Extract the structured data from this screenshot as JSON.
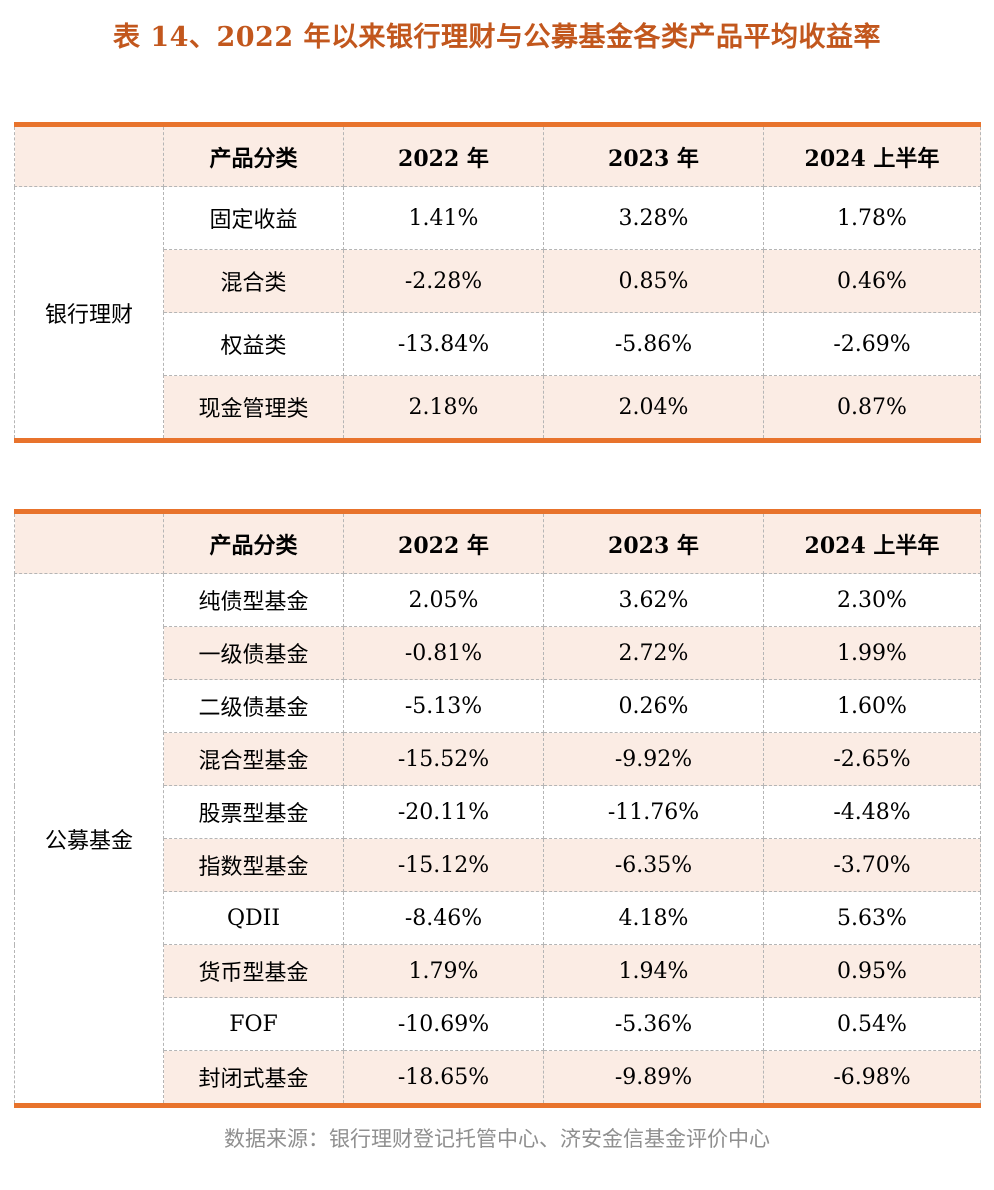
{
  "page": {
    "title": "表 14、2022 年以来银行理财与公募基金各类产品平均收益率",
    "source_note": "数据来源：银行理财登记托管中心、济安金信基金评价中心"
  },
  "columns": [
    "产品分类",
    "2022 年",
    "2023 年",
    "2024 上半年"
  ],
  "tables": [
    {
      "group": "银行理财",
      "rows": [
        {
          "label": "固定收益",
          "values": [
            "1.41%",
            "3.28%",
            "1.78%"
          ]
        },
        {
          "label": "混合类",
          "values": [
            "-2.28%",
            "0.85%",
            "0.46%"
          ]
        },
        {
          "label": "权益类",
          "values": [
            "-13.84%",
            "-5.86%",
            "-2.69%"
          ]
        },
        {
          "label": "现金管理类",
          "values": [
            "2.18%",
            "2.04%",
            "0.87%"
          ]
        }
      ]
    },
    {
      "group": "公募基金",
      "rows": [
        {
          "label": "纯债型基金",
          "values": [
            "2.05%",
            "3.62%",
            "2.30%"
          ]
        },
        {
          "label": "一级债基金",
          "values": [
            "-0.81%",
            "2.72%",
            "1.99%"
          ]
        },
        {
          "label": "二级债基金",
          "values": [
            "-5.13%",
            "0.26%",
            "1.60%"
          ]
        },
        {
          "label": "混合型基金",
          "values": [
            "-15.52%",
            "-9.92%",
            "-2.65%"
          ]
        },
        {
          "label": "股票型基金",
          "values": [
            "-20.11%",
            "-11.76%",
            "-4.48%"
          ]
        },
        {
          "label": "指数型基金",
          "values": [
            "-15.12%",
            "-6.35%",
            "-3.70%"
          ]
        },
        {
          "label": "QDII",
          "values": [
            "-8.46%",
            "4.18%",
            "5.63%"
          ]
        },
        {
          "label": "货币型基金",
          "values": [
            "1.79%",
            "1.94%",
            "0.95%"
          ]
        },
        {
          "label": "FOF",
          "values": [
            "-10.69%",
            "-5.36%",
            "0.54%"
          ]
        },
        {
          "label": "封闭式基金",
          "values": [
            "-18.65%",
            "-9.89%",
            "-6.98%"
          ]
        }
      ]
    }
  ],
  "colors": {
    "accent_orange": "#e8732c",
    "title_orange": "#c2571d",
    "row_tint": "#fbece4",
    "border_gray": "#b5b5b5",
    "note_gray": "#8f8f8f"
  }
}
